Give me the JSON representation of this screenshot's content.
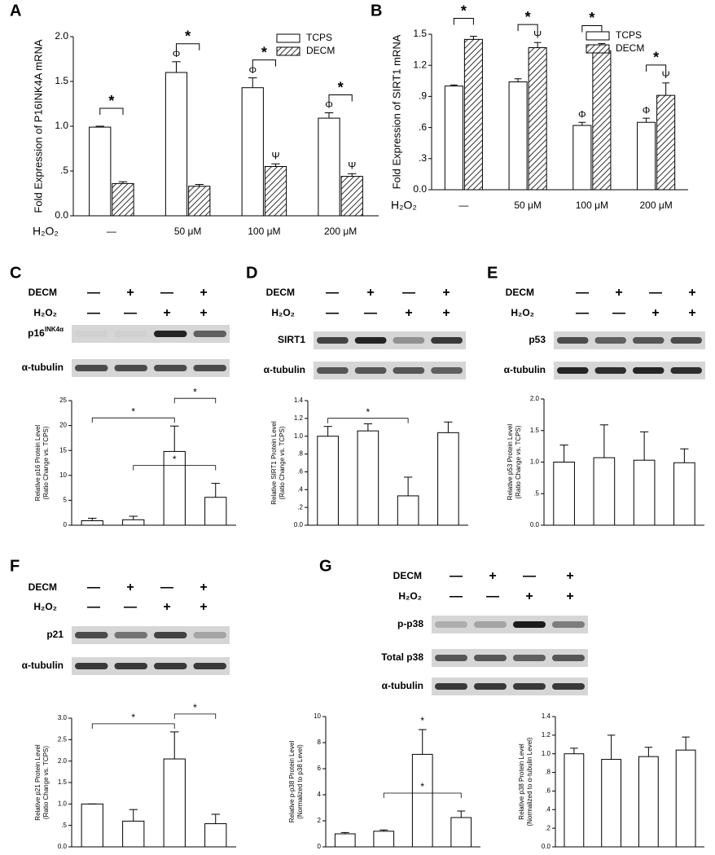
{
  "chart_data": [
    {
      "type": "bar",
      "panel": "A",
      "ylabel": "Fold Expression of P16INK4A mRNA",
      "xlabel": "H₂O₂",
      "categories": [
        "—",
        "50 μM",
        "100 μM",
        "200 μM"
      ],
      "series": [
        {
          "name": "TCPS",
          "color": "#ffffff",
          "values": [
            0.99,
            1.6,
            1.43,
            1.09
          ],
          "errors": [
            0.01,
            0.12,
            0.11,
            0.06
          ],
          "markers": [
            null,
            "Φ",
            "Φ",
            "Φ"
          ]
        },
        {
          "name": "DECM",
          "color": "#555555",
          "pattern": "hatch",
          "values": [
            0.36,
            0.33,
            0.55,
            0.44
          ],
          "errors": [
            0.02,
            0.02,
            0.03,
            0.03
          ],
          "markers": [
            null,
            null,
            "Ψ",
            "Ψ"
          ]
        }
      ],
      "ylim": [
        0,
        2
      ],
      "yticks": [
        {
          "value": 0,
          "label": "0.0"
        },
        {
          "value": 0.5,
          "label": ".5"
        },
        {
          "value": 1,
          "label": "1.0"
        },
        {
          "value": 1.5,
          "label": "1.5"
        },
        {
          "value": 2,
          "label": "2.0"
        }
      ],
      "legend": "upper right",
      "significance": [
        {
          "label": "*",
          "categories": [
            0
          ]
        },
        {
          "label": "*",
          "categories": [
            1
          ]
        },
        {
          "label": "*",
          "categories": [
            2
          ]
        },
        {
          "label": "*",
          "categories": [
            3
          ]
        }
      ]
    },
    {
      "type": "bar",
      "panel": "B",
      "ylabel": "Fold Expression of SIRT1 mRNA",
      "xlabel": "H₂O₂",
      "categories": [
        "—",
        "50 μM",
        "100 μM",
        "200 μM"
      ],
      "series": [
        {
          "name": "TCPS",
          "color": "#ffffff",
          "values": [
            1.0,
            1.04,
            0.62,
            0.65
          ],
          "errors": [
            0.01,
            0.03,
            0.03,
            0.04
          ],
          "markers": [
            null,
            null,
            "Φ",
            "Φ"
          ]
        },
        {
          "name": "DECM",
          "color": "#555555",
          "pattern": "hatch",
          "values": [
            1.45,
            1.37,
            1.34,
            0.91
          ],
          "errors": [
            0.03,
            0.05,
            0.07,
            0.12
          ],
          "markers": [
            null,
            "Ψ",
            "Ψ",
            "Ψ"
          ]
        }
      ],
      "ylim": [
        0,
        1.5
      ],
      "yticks": [
        {
          "value": 0,
          "label": "0.0"
        },
        {
          "value": 0.3,
          "label": ".3"
        },
        {
          "value": 0.6,
          "label": ".6"
        },
        {
          "value": 0.9,
          "label": ".9"
        },
        {
          "value": 1.2,
          "label": "1.2"
        },
        {
          "value": 1.5,
          "label": "1.5"
        }
      ],
      "legend": "upper right",
      "significance": [
        {
          "label": "*",
          "categories": [
            0
          ]
        },
        {
          "label": "*",
          "categories": [
            1
          ]
        },
        {
          "label": "*",
          "categories": [
            2
          ]
        },
        {
          "label": "*",
          "categories": [
            3
          ]
        }
      ]
    },
    {
      "type": "bar",
      "ylabel": [
        "Relative p16 Protein Level",
        "(Ratio Change vs. TCPS)"
      ],
      "color": "#ffffff",
      "values": [
        0.9,
        1.1,
        14.8,
        5.6
      ],
      "errors": [
        0.5,
        0.7,
        5.1,
        2.8
      ],
      "ylim": [
        0,
        25
      ],
      "yticks": [
        0,
        5,
        10,
        15,
        20,
        25
      ],
      "significance": [
        {
          "label": "*",
          "categories": [
            0,
            2
          ]
        },
        {
          "label": "*",
          "categories": [
            1,
            3
          ]
        },
        {
          "label": "*",
          "categories": [
            2,
            3
          ]
        }
      ]
    },
    {
      "type": "bar",
      "ylabel": [
        "Relative SIRT1 Protein Level",
        "(Ratio Change vs. TCPS)"
      ],
      "color": "#ffffff",
      "values": [
        1.0,
        1.06,
        0.33,
        1.04
      ],
      "errors": [
        0.11,
        0.08,
        0.21,
        0.12
      ],
      "ylim": [
        0,
        1.4
      ],
      "yticks": [
        {
          "value": 0,
          "label": "0.0"
        },
        {
          "value": 0.2,
          "label": ".2"
        },
        {
          "value": 0.4,
          "label": ".4"
        },
        {
          "value": 0.6,
          "label": ".6"
        },
        {
          "value": 0.8,
          "label": ".8"
        },
        {
          "value": 1,
          "label": "1.0"
        },
        {
          "value": 1.2,
          "label": "1.2"
        },
        {
          "value": 1.4,
          "label": "1.4"
        }
      ],
      "significance": [
        {
          "label": "*",
          "categories": [
            0,
            2
          ]
        }
      ]
    },
    {
      "type": "bar",
      "ylabel": [
        "Relative p53 Protein Level",
        "(Ratio Change vs. TCPS)"
      ],
      "color": "#ffffff",
      "values": [
        1.0,
        1.07,
        1.03,
        0.99
      ],
      "errors": [
        0.27,
        0.52,
        0.45,
        0.22
      ],
      "ylim": [
        0,
        2
      ],
      "yticks": [
        {
          "value": 0,
          "label": "0.0"
        },
        {
          "value": 0.5,
          "label": ".5"
        },
        {
          "value": 1,
          "label": "1.0"
        },
        {
          "value": 1.5,
          "label": "1.5"
        },
        {
          "value": 2,
          "label": "2.0"
        }
      ]
    },
    {
      "type": "bar",
      "ylabel": [
        "Relative p21 Protein Level",
        "(Ratio Change vs. TCPS)"
      ],
      "color": "#ffffff",
      "values": [
        1.0,
        0.6,
        2.05,
        0.54
      ],
      "errors": [
        0,
        0.27,
        0.63,
        0.22
      ],
      "ylim": [
        0,
        3
      ],
      "yticks": [
        {
          "value": 0,
          "label": "0.0"
        },
        {
          "value": 0.5,
          "label": ".5"
        },
        {
          "value": 1,
          "label": "1.0"
        },
        {
          "value": 1.5,
          "label": "1.5"
        },
        {
          "value": 2,
          "label": "2.0"
        },
        {
          "value": 2.5,
          "label": "2.5"
        },
        {
          "value": 3,
          "label": "3.0"
        }
      ],
      "significance": [
        {
          "label": "*",
          "categories": [
            0,
            2
          ]
        },
        {
          "label": "*",
          "categories": [
            2,
            3
          ]
        }
      ]
    },
    {
      "type": "bar",
      "ylabel": [
        "Relative p-p38 Protein Level",
        "(Normalized to p38 Level)"
      ],
      "color": "#ffffff",
      "values": [
        1.0,
        1.2,
        7.1,
        2.25
      ],
      "errors": [
        0.1,
        0.1,
        1.9,
        0.5
      ],
      "ylim": [
        0,
        10
      ],
      "yticks": [
        0,
        2,
        4,
        6,
        8,
        10
      ],
      "significance": [
        {
          "label": "*",
          "categories": [
            2
          ]
        },
        {
          "label": "*",
          "categories": [
            1,
            3
          ]
        }
      ]
    },
    {
      "type": "bar",
      "ylabel": [
        "Relative p38 Protein Level",
        "(Normalized to α-tubulin Level)"
      ],
      "color": "#ffffff",
      "values": [
        1.0,
        0.94,
        0.97,
        1.04
      ],
      "errors": [
        0.06,
        0.26,
        0.1,
        0.14
      ],
      "ylim": [
        0,
        1.4
      ],
      "yticks": [
        {
          "value": 0,
          "label": "0.0"
        },
        {
          "value": 0.2,
          "label": ".2"
        },
        {
          "value": 0.4,
          "label": ".4"
        },
        {
          "value": 0.6,
          "label": ".6"
        },
        {
          "value": 0.8,
          "label": ".8"
        },
        {
          "value": 1,
          "label": "1.0"
        },
        {
          "value": 1.2,
          "label": "1.2"
        },
        {
          "value": 1.4,
          "label": "1.4"
        }
      ]
    }
  ],
  "blots": [
    {
      "panel": "C",
      "rows": [
        {
          "label": "DECM",
          "signs": [
            "—",
            "+",
            "—",
            "+"
          ]
        },
        {
          "label": "H₂O₂",
          "signs": [
            "—",
            "—",
            "+",
            "+"
          ]
        }
      ],
      "bands": [
        {
          "label": "p16",
          "sup": "INK4α"
        },
        {
          "label": "α-tubulin"
        }
      ]
    },
    {
      "panel": "D",
      "rows": [
        {
          "label": "DECM",
          "signs": [
            "—",
            "+",
            "—",
            "+"
          ]
        },
        {
          "label": "H₂O₂",
          "signs": [
            "—",
            "—",
            "+",
            "+"
          ]
        }
      ],
      "bands": [
        {
          "label": "SIRT1"
        },
        {
          "label": "α-tubulin"
        }
      ]
    },
    {
      "panel": "E",
      "rows": [
        {
          "label": "DECM",
          "signs": [
            "—",
            "+",
            "—",
            "+"
          ]
        },
        {
          "label": "H₂O₂",
          "signs": [
            "—",
            "—",
            "+",
            "+"
          ]
        }
      ],
      "bands": [
        {
          "label": "p53"
        },
        {
          "label": "α-tubulin"
        }
      ]
    },
    {
      "panel": "F",
      "rows": [
        {
          "label": "DECM",
          "signs": [
            "—",
            "+",
            "—",
            "+"
          ]
        },
        {
          "label": "H₂O₂",
          "signs": [
            "—",
            "—",
            "+",
            "+"
          ]
        }
      ],
      "bands": [
        {
          "label": "p21"
        },
        {
          "label": "α-tubulin"
        }
      ]
    },
    {
      "panel": "G",
      "rows": [
        {
          "label": "DECM",
          "signs": [
            "—",
            "+",
            "—",
            "+"
          ]
        },
        {
          "label": "H₂O₂",
          "signs": [
            "—",
            "—",
            "+",
            "+"
          ]
        }
      ],
      "bands": [
        {
          "label": "p-p38"
        },
        {
          "label": "Total p38"
        },
        {
          "label": "α-tubulin"
        }
      ]
    }
  ]
}
